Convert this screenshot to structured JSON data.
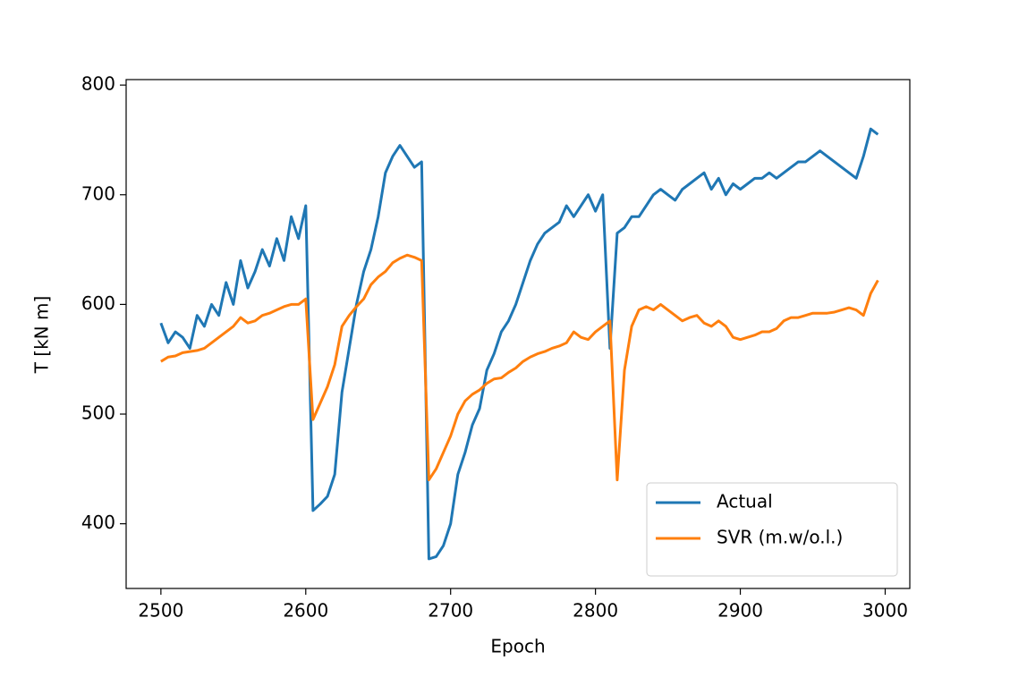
{
  "chart_data": {
    "type": "line",
    "x_label": "Epoch",
    "y_label": "T [kN m]",
    "x": [
      2500,
      2505,
      2510,
      2515,
      2520,
      2525,
      2530,
      2535,
      2540,
      2545,
      2550,
      2555,
      2560,
      2565,
      2570,
      2575,
      2580,
      2585,
      2590,
      2595,
      2600,
      2605,
      2610,
      2615,
      2620,
      2625,
      2630,
      2635,
      2640,
      2645,
      2650,
      2655,
      2660,
      2665,
      2670,
      2675,
      2680,
      2685,
      2690,
      2695,
      2700,
      2705,
      2710,
      2715,
      2720,
      2725,
      2730,
      2735,
      2740,
      2745,
      2750,
      2755,
      2760,
      2765,
      2770,
      2775,
      2780,
      2785,
      2790,
      2795,
      2800,
      2805,
      2810,
      2815,
      2820,
      2825,
      2830,
      2835,
      2840,
      2845,
      2850,
      2855,
      2860,
      2865,
      2870,
      2875,
      2880,
      2885,
      2890,
      2895,
      2900,
      2905,
      2910,
      2915,
      2920,
      2925,
      2930,
      2935,
      2940,
      2945,
      2950,
      2955,
      2960,
      2965,
      2970,
      2975,
      2980,
      2985,
      2990,
      2995
    ],
    "series": [
      {
        "name": "Actual",
        "color": "#1f77b4",
        "values": [
          583,
          565,
          575,
          570,
          560,
          590,
          580,
          600,
          590,
          620,
          600,
          640,
          615,
          630,
          650,
          635,
          660,
          640,
          680,
          660,
          690,
          412,
          418,
          425,
          445,
          520,
          560,
          600,
          630,
          650,
          680,
          720,
          735,
          745,
          735,
          725,
          730,
          368,
          370,
          380,
          400,
          445,
          465,
          490,
          505,
          540,
          555,
          575,
          585,
          600,
          620,
          640,
          655,
          665,
          670,
          675,
          690,
          680,
          690,
          700,
          685,
          700,
          560,
          665,
          670,
          680,
          680,
          690,
          700,
          705,
          700,
          695,
          705,
          710,
          715,
          720,
          705,
          715,
          700,
          710,
          705,
          710,
          715,
          715,
          720,
          715,
          720,
          725,
          730,
          730,
          735,
          740,
          735,
          730,
          725,
          720,
          715,
          735,
          760,
          755
        ]
      },
      {
        "name": "SVR (m.w/o.l.)",
        "color": "#ff7f0e",
        "values": [
          548,
          552,
          553,
          556,
          557,
          558,
          560,
          565,
          570,
          575,
          580,
          588,
          583,
          585,
          590,
          592,
          595,
          598,
          600,
          600,
          605,
          495,
          510,
          525,
          545,
          580,
          590,
          598,
          605,
          618,
          625,
          630,
          638,
          642,
          645,
          643,
          640,
          440,
          450,
          465,
          480,
          500,
          512,
          518,
          522,
          528,
          532,
          533,
          538,
          542,
          548,
          552,
          555,
          557,
          560,
          562,
          565,
          575,
          570,
          568,
          575,
          580,
          585,
          440,
          540,
          580,
          595,
          598,
          595,
          600,
          595,
          590,
          585,
          588,
          590,
          583,
          580,
          585,
          580,
          570,
          568,
          570,
          572,
          575,
          575,
          578,
          585,
          588,
          588,
          590,
          592,
          592,
          592,
          593,
          595,
          597,
          595,
          590,
          610,
          622
        ]
      }
    ],
    "xlim": [
      2476,
      3017
    ],
    "ylim": [
      341,
      805
    ],
    "xticks": [
      2500,
      2600,
      2700,
      2800,
      2900,
      3000
    ],
    "yticks": [
      400,
      500,
      600,
      700,
      800
    ],
    "legend": "lower right"
  }
}
